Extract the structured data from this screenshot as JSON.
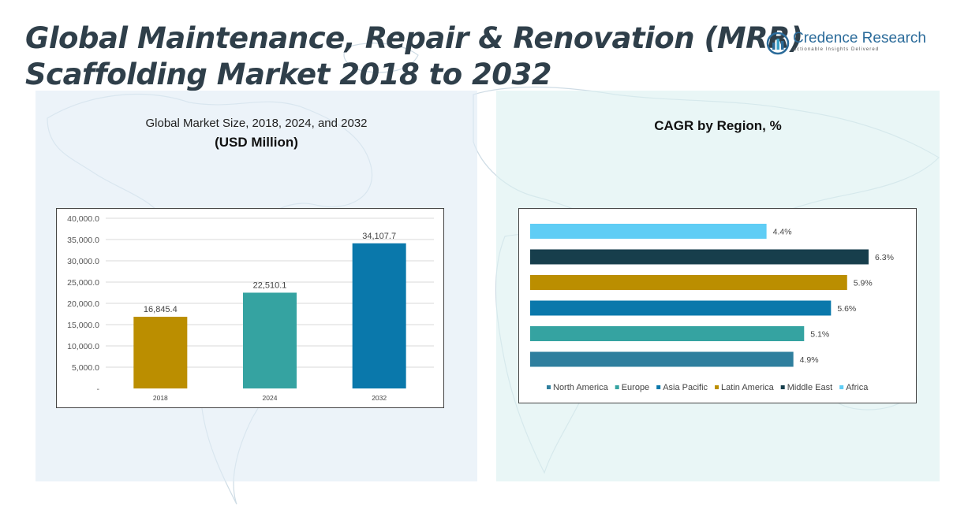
{
  "header": {
    "title_line1": "Global Maintenance, Repair & Renovation (MRR)",
    "title_line2": "Scaffolding Market 2018 to 2032"
  },
  "logo": {
    "name": "Credence Research",
    "tagline": "Actionable Insights Delivered"
  },
  "colors": {
    "north_america": "#2f7f9e",
    "europe": "#35a3a1",
    "asia_pacific": "#0a78ab",
    "latin_america": "#bb8e00",
    "middle_east": "#173e4c",
    "africa": "#5fcdf5"
  },
  "chart_data": [
    {
      "type": "bar",
      "title": "Global Market Size, 2018, 2024, and 2032",
      "unit_label": "(USD Million)",
      "categories": [
        "2018",
        "2024",
        "2032"
      ],
      "values": [
        16845.4,
        22510.1,
        34107.7
      ],
      "value_labels": [
        "16,845.4",
        "22,510.1",
        "34,107.7"
      ],
      "bar_colors": [
        "#bb8e00",
        "#35a3a1",
        "#0a78ab"
      ],
      "ylim": [
        0,
        40000
      ],
      "yticks": [
        0,
        5000,
        10000,
        15000,
        20000,
        25000,
        30000,
        35000,
        40000
      ],
      "ytick_labels": [
        "-",
        "5,000.0",
        "10,000.0",
        "15,000.0",
        "20,000.0",
        "25,000.0",
        "30,000.0",
        "35,000.0",
        "40,000.0"
      ],
      "xlabel": "",
      "ylabel": "",
      "grid": true
    },
    {
      "type": "bar",
      "orientation": "horizontal",
      "title": "CAGR by Region, %",
      "categories": [
        "North America",
        "Europe",
        "Asia Pacific",
        "Latin America",
        "Middle East",
        "Africa"
      ],
      "values": [
        4.9,
        5.1,
        5.6,
        5.9,
        6.3,
        4.4
      ],
      "value_labels": [
        "4.9%",
        "5.1%",
        "5.6%",
        "5.9%",
        "6.3%",
        "4.4%"
      ],
      "bar_colors": [
        "#2f7f9e",
        "#35a3a1",
        "#0a78ab",
        "#bb8e00",
        "#173e4c",
        "#5fcdf5"
      ],
      "xlim": [
        0,
        6.3
      ],
      "legend": "bottom",
      "grid": false
    }
  ]
}
